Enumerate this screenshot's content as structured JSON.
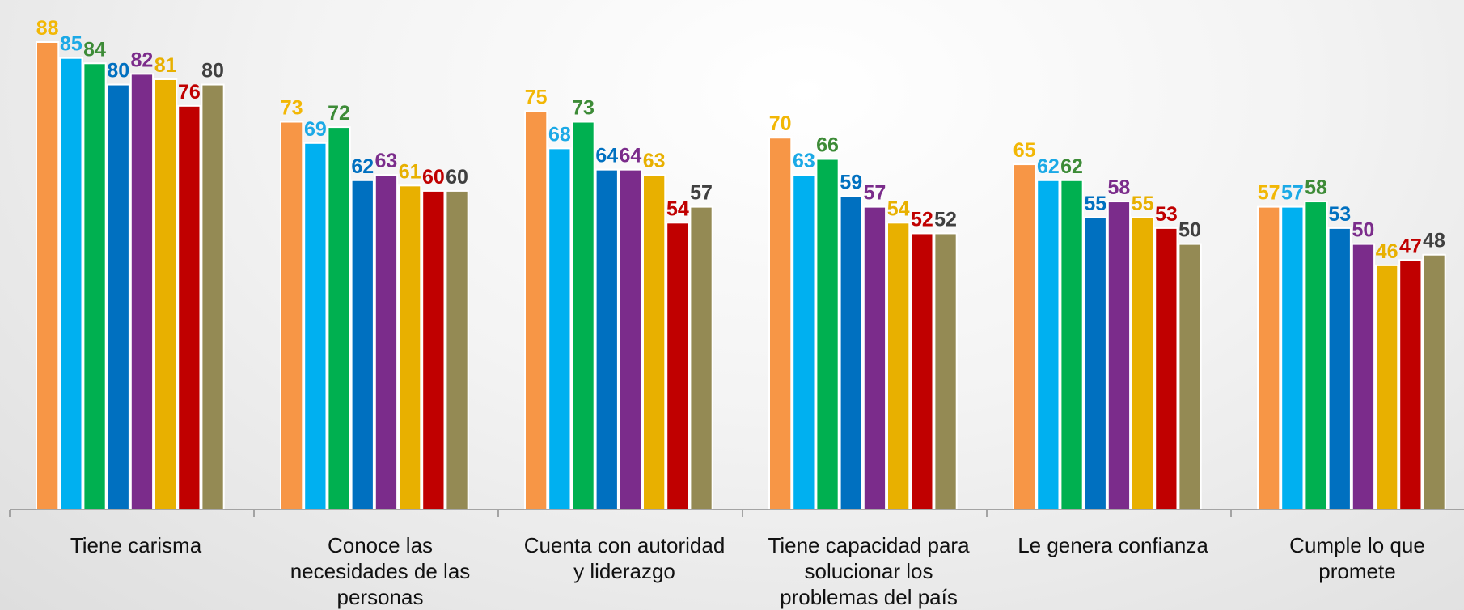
{
  "chart_data": {
    "type": "bar",
    "title": "",
    "xlabel": "",
    "ylabel": "",
    "ylim": [
      0,
      88
    ],
    "grid": false,
    "legend": "none",
    "categories": [
      [
        "Tiene carisma"
      ],
      [
        "Conoce las",
        "necesidades de las",
        "personas"
      ],
      [
        "Cuenta con autoridad",
        "y liderazgo"
      ],
      [
        "Tiene capacidad para",
        "solucionar los",
        "problemas del país"
      ],
      [
        "Le genera confianza"
      ],
      [
        "Cumple lo que",
        "promete"
      ]
    ],
    "series": [
      {
        "color": "#F79646",
        "label_color": "#F2B705",
        "values": [
          88,
          73,
          75,
          70,
          65,
          57
        ]
      },
      {
        "color": "#00B0F0",
        "label_color": "#1BA9E6",
        "values": [
          85,
          69,
          68,
          63,
          62,
          57
        ]
      },
      {
        "color": "#00B050",
        "label_color": "#3D8B37",
        "values": [
          84,
          72,
          73,
          66,
          62,
          58
        ]
      },
      {
        "color": "#0070C0",
        "label_color": "#0070C0",
        "values": [
          80,
          62,
          64,
          59,
          55,
          53
        ]
      },
      {
        "color": "#7B2C8B",
        "label_color": "#7B2C8B",
        "values": [
          82,
          63,
          64,
          57,
          58,
          50
        ]
      },
      {
        "color": "#E8B000",
        "label_color": "#E8B000",
        "values": [
          81,
          61,
          63,
          54,
          55,
          46
        ]
      },
      {
        "color": "#C00000",
        "label_color": "#C00000",
        "values": [
          76,
          60,
          54,
          52,
          53,
          47
        ]
      },
      {
        "color": "#948A54",
        "label_color": "#404040",
        "values": [
          80,
          60,
          57,
          52,
          50,
          48
        ]
      }
    ]
  }
}
